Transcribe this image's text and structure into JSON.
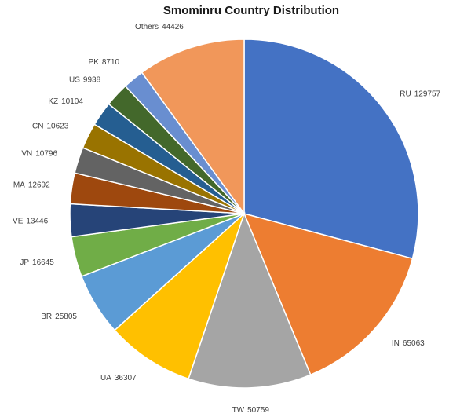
{
  "chart_data": {
    "type": "pie",
    "title": "Smominru Country Distribution",
    "categories": [
      "RU",
      "IN",
      "TW",
      "UA",
      "BR",
      "JP",
      "VE",
      "MA",
      "VN",
      "CN",
      "KZ",
      "US",
      "PK",
      "Others"
    ],
    "values": [
      129757,
      65063,
      50759,
      36307,
      25805,
      16645,
      13446,
      12692,
      10796,
      10623,
      10104,
      9938,
      8710,
      44426
    ],
    "colors": [
      "#4472c4",
      "#ed7d31",
      "#a5a5a5",
      "#ffc000",
      "#5b9bd5",
      "#70ad47",
      "#264478",
      "#9e480e",
      "#636363",
      "#997300",
      "#255e91",
      "#43682b",
      "#698ed0",
      "#f1975a"
    ]
  }
}
